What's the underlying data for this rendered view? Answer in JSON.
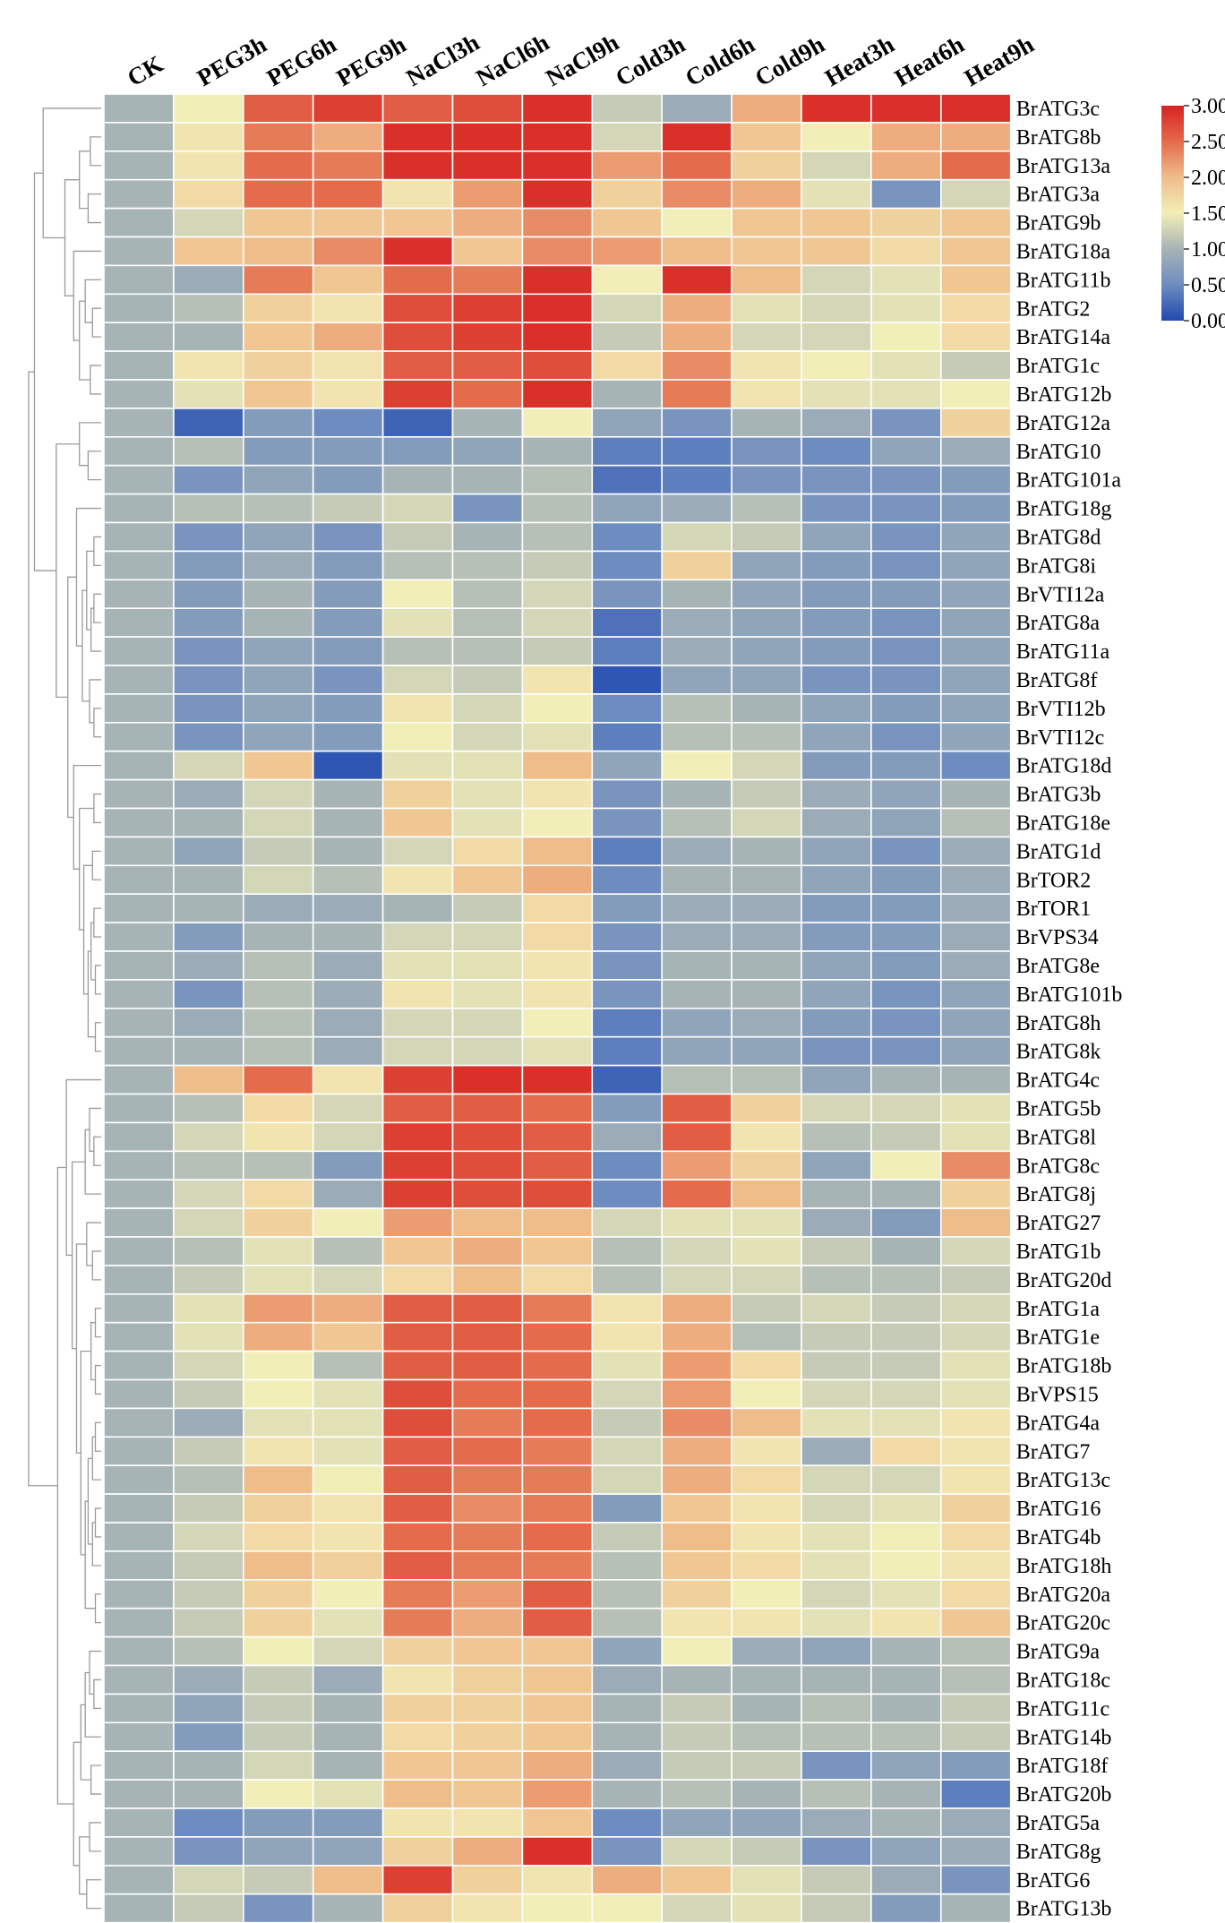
{
  "chart_data": {
    "type": "heatmap",
    "title": "",
    "columns": [
      "CK",
      "PEG3h",
      "PEG6h",
      "PEG9h",
      "NaCl3h",
      "NaCl6h",
      "NaCl9h",
      "Cold3h",
      "Cold6h",
      "Cold9h",
      "Heat3h",
      "Heat6h",
      "Heat9h"
    ],
    "rows": [
      "BrATG3c",
      "BrATG8b",
      "BrATG13a",
      "BrATG3a",
      "BrATG9b",
      "BrATG18a",
      "BrATG11b",
      "BrATG2",
      "BrATG14a",
      "BrATG1c",
      "BrATG12b",
      "BrATG12a",
      "BrATG10",
      "BrATG101a",
      "BrATG18g",
      "BrATG8d",
      "BrATG8i",
      "BrVTI12a",
      "BrATG8a",
      "BrATG11a",
      "BrATG8f",
      "BrVTI12b",
      "BrVTI12c",
      "BrATG18d",
      "BrATG3b",
      "BrATG18e",
      "BrATG1d",
      "BrTOR2",
      "BrTOR1",
      "BrVPS34",
      "BrATG8e",
      "BrATG101b",
      "BrATG8h",
      "BrATG8k",
      "BrATG4c",
      "BrATG5b",
      "BrATG8l",
      "BrATG8c",
      "BrATG8j",
      "BrATG27",
      "BrATG1b",
      "BrATG20d",
      "BrATG1a",
      "BrATG1e",
      "BrATG18b",
      "BrVPS15",
      "BrATG4a",
      "BrATG7",
      "BrATG13c",
      "BrATG16",
      "BrATG4b",
      "BrATG18h",
      "BrATG20a",
      "BrATG20c",
      "BrATG9a",
      "BrATG18c",
      "BrATG11c",
      "BrATG14b",
      "BrATG18f",
      "BrATG20b",
      "BrATG5a",
      "BrATG8g",
      "BrATG6",
      "BrATG13b"
    ],
    "values": [
      [
        1.0,
        1.5,
        2.6,
        2.8,
        2.6,
        2.7,
        2.9,
        1.2,
        0.9,
        2.1,
        2.9,
        2.9,
        2.9
      ],
      [
        1.0,
        1.6,
        2.4,
        2.1,
        2.9,
        2.9,
        2.9,
        1.3,
        2.9,
        1.9,
        1.5,
        2.1,
        2.1
      ],
      [
        1.0,
        1.6,
        2.5,
        2.4,
        2.9,
        2.9,
        2.9,
        2.2,
        2.5,
        1.8,
        1.3,
        2.1,
        2.5
      ],
      [
        1.0,
        1.7,
        2.5,
        2.5,
        1.6,
        2.2,
        2.9,
        1.8,
        2.3,
        2.1,
        1.4,
        0.6,
        1.3
      ],
      [
        1.0,
        1.3,
        1.9,
        1.9,
        1.9,
        2.1,
        2.3,
        1.9,
        1.5,
        1.9,
        1.9,
        1.8,
        1.9
      ],
      [
        1.0,
        1.9,
        2.0,
        2.3,
        2.9,
        1.9,
        2.3,
        2.2,
        2.0,
        1.9,
        1.9,
        1.7,
        1.9
      ],
      [
        1.0,
        0.9,
        2.4,
        1.9,
        2.5,
        2.4,
        2.9,
        1.5,
        2.9,
        2.0,
        1.3,
        1.4,
        1.9
      ],
      [
        1.0,
        1.1,
        1.8,
        1.6,
        2.7,
        2.8,
        2.9,
        1.3,
        2.1,
        1.4,
        1.3,
        1.4,
        1.7
      ],
      [
        1.0,
        1.0,
        1.9,
        2.1,
        2.7,
        2.8,
        2.9,
        1.2,
        2.1,
        1.3,
        1.3,
        1.5,
        1.7
      ],
      [
        1.0,
        1.6,
        1.8,
        1.6,
        2.6,
        2.6,
        2.7,
        1.7,
        2.3,
        1.6,
        1.5,
        1.4,
        1.2
      ],
      [
        1.0,
        1.4,
        1.9,
        1.6,
        2.8,
        2.5,
        2.9,
        1.0,
        2.4,
        1.6,
        1.4,
        1.4,
        1.5
      ],
      [
        1.0,
        0.2,
        0.7,
        0.5,
        0.2,
        1.0,
        1.5,
        0.8,
        0.6,
        1.0,
        0.9,
        0.6,
        1.8
      ],
      [
        1.0,
        1.1,
        0.7,
        0.7,
        0.7,
        0.8,
        1.0,
        0.4,
        0.4,
        0.6,
        0.5,
        0.8,
        0.9
      ],
      [
        1.0,
        0.6,
        0.8,
        0.7,
        1.0,
        1.0,
        1.1,
        0.3,
        0.4,
        0.6,
        0.6,
        0.6,
        0.7
      ],
      [
        1.0,
        1.1,
        1.1,
        1.2,
        1.3,
        0.6,
        1.1,
        0.8,
        0.9,
        1.1,
        0.6,
        0.6,
        0.7
      ],
      [
        1.0,
        0.6,
        0.8,
        0.6,
        1.2,
        1.0,
        1.1,
        0.5,
        1.3,
        1.2,
        0.8,
        0.6,
        0.8
      ],
      [
        1.0,
        0.7,
        0.9,
        0.7,
        1.1,
        1.1,
        1.2,
        0.5,
        1.8,
        0.8,
        0.7,
        0.6,
        0.8
      ],
      [
        1.0,
        0.7,
        1.0,
        0.7,
        1.5,
        1.1,
        1.3,
        0.6,
        1.0,
        0.8,
        0.7,
        0.7,
        0.8
      ],
      [
        1.0,
        0.7,
        1.0,
        0.7,
        1.4,
        1.1,
        1.3,
        0.3,
        0.9,
        0.8,
        0.7,
        0.6,
        0.8
      ],
      [
        1.0,
        0.6,
        0.8,
        0.7,
        1.1,
        1.1,
        1.2,
        0.4,
        0.9,
        0.8,
        0.7,
        0.6,
        0.8
      ],
      [
        1.0,
        0.6,
        0.8,
        0.6,
        1.3,
        1.2,
        1.6,
        0.1,
        0.8,
        0.8,
        0.6,
        0.6,
        0.8
      ],
      [
        1.0,
        0.6,
        0.8,
        0.7,
        1.6,
        1.3,
        1.5,
        0.5,
        1.1,
        1.0,
        0.8,
        0.7,
        0.8
      ],
      [
        1.0,
        0.6,
        0.8,
        0.7,
        1.5,
        1.3,
        1.4,
        0.4,
        1.1,
        1.1,
        0.8,
        0.6,
        0.8
      ],
      [
        1.0,
        1.3,
        1.9,
        0.1,
        1.4,
        1.4,
        2.0,
        0.8,
        1.5,
        1.3,
        0.7,
        0.7,
        0.5
      ],
      [
        1.0,
        0.9,
        1.3,
        1.0,
        1.8,
        1.4,
        1.6,
        0.6,
        1.0,
        1.2,
        0.9,
        0.8,
        1.0
      ],
      [
        1.0,
        1.0,
        1.3,
        1.0,
        1.9,
        1.4,
        1.5,
        0.6,
        1.1,
        1.3,
        0.9,
        0.8,
        1.1
      ],
      [
        1.0,
        0.8,
        1.2,
        1.0,
        1.3,
        1.7,
        2.0,
        0.4,
        0.9,
        1.0,
        0.8,
        0.6,
        0.9
      ],
      [
        1.0,
        1.0,
        1.3,
        1.1,
        1.6,
        1.9,
        2.1,
        0.5,
        1.0,
        1.0,
        0.8,
        0.7,
        0.9
      ],
      [
        1.0,
        1.0,
        0.9,
        0.9,
        1.0,
        1.2,
        1.7,
        0.7,
        0.9,
        0.9,
        0.7,
        0.7,
        0.9
      ],
      [
        1.0,
        0.7,
        1.0,
        1.0,
        1.3,
        1.3,
        1.7,
        0.6,
        0.9,
        0.9,
        0.7,
        0.7,
        0.9
      ],
      [
        1.0,
        0.9,
        1.1,
        0.9,
        1.4,
        1.4,
        1.6,
        0.6,
        1.0,
        1.0,
        0.8,
        0.7,
        0.9
      ],
      [
        1.0,
        0.6,
        1.1,
        0.9,
        1.6,
        1.4,
        1.6,
        0.6,
        1.0,
        1.0,
        0.8,
        0.6,
        0.8
      ],
      [
        1.0,
        0.9,
        1.1,
        0.9,
        1.3,
        1.3,
        1.5,
        0.4,
        0.8,
        0.9,
        0.7,
        0.6,
        0.8
      ],
      [
        1.0,
        1.0,
        1.1,
        0.9,
        1.3,
        1.3,
        1.4,
        0.4,
        0.8,
        0.8,
        0.6,
        0.6,
        0.8
      ],
      [
        1.0,
        2.0,
        2.5,
        1.6,
        2.8,
        2.9,
        2.9,
        0.2,
        1.1,
        1.1,
        0.8,
        1.0,
        1.0
      ],
      [
        1.0,
        1.1,
        1.7,
        1.3,
        2.6,
        2.6,
        2.5,
        0.7,
        2.6,
        1.8,
        1.3,
        1.3,
        1.4
      ],
      [
        1.0,
        1.3,
        1.6,
        1.3,
        2.8,
        2.7,
        2.6,
        0.9,
        2.6,
        1.6,
        1.1,
        1.2,
        1.4
      ],
      [
        1.0,
        1.1,
        1.1,
        0.7,
        2.8,
        2.7,
        2.6,
        0.5,
        2.2,
        1.8,
        0.8,
        1.5,
        2.3
      ],
      [
        1.0,
        1.3,
        1.7,
        0.9,
        2.8,
        2.7,
        2.7,
        0.5,
        2.5,
        2.0,
        1.0,
        1.0,
        1.8
      ],
      [
        1.0,
        1.3,
        1.8,
        1.5,
        2.2,
        2.0,
        2.0,
        1.3,
        1.4,
        1.4,
        0.9,
        0.7,
        2.0
      ],
      [
        1.0,
        1.1,
        1.4,
        1.1,
        1.9,
        2.1,
        1.9,
        1.1,
        1.3,
        1.4,
        1.2,
        1.0,
        1.3
      ],
      [
        1.0,
        1.2,
        1.4,
        1.3,
        1.7,
        2.0,
        1.7,
        1.1,
        1.3,
        1.3,
        1.1,
        1.1,
        1.2
      ],
      [
        1.0,
        1.4,
        2.2,
        2.1,
        2.6,
        2.6,
        2.4,
        1.6,
        2.1,
        1.2,
        1.3,
        1.2,
        1.3
      ],
      [
        1.0,
        1.4,
        2.1,
        1.9,
        2.6,
        2.6,
        2.5,
        1.6,
        2.1,
        1.1,
        1.2,
        1.2,
        1.3
      ],
      [
        1.0,
        1.3,
        1.5,
        1.1,
        2.6,
        2.6,
        2.5,
        1.4,
        2.2,
        1.7,
        1.2,
        1.2,
        1.4
      ],
      [
        1.0,
        1.2,
        1.5,
        1.4,
        2.7,
        2.5,
        2.5,
        1.3,
        2.2,
        1.5,
        1.3,
        1.3,
        1.4
      ],
      [
        1.0,
        0.9,
        1.4,
        1.4,
        2.7,
        2.4,
        2.5,
        1.2,
        2.3,
        2.0,
        1.4,
        1.4,
        1.6
      ],
      [
        1.0,
        1.2,
        1.6,
        1.4,
        2.6,
        2.5,
        2.4,
        1.3,
        2.1,
        1.6,
        0.9,
        1.7,
        1.6
      ],
      [
        1.0,
        1.1,
        2.0,
        1.5,
        2.6,
        2.4,
        2.4,
        1.3,
        2.1,
        1.7,
        1.3,
        1.3,
        1.6
      ],
      [
        1.0,
        1.2,
        1.8,
        1.6,
        2.6,
        2.3,
        2.4,
        0.7,
        1.9,
        1.6,
        1.3,
        1.4,
        1.8
      ],
      [
        1.0,
        1.3,
        1.7,
        1.6,
        2.5,
        2.4,
        2.5,
        1.2,
        2.0,
        1.6,
        1.4,
        1.5,
        1.7
      ],
      [
        1.0,
        1.2,
        2.0,
        1.8,
        2.6,
        2.4,
        2.4,
        1.1,
        1.9,
        1.7,
        1.4,
        1.5,
        1.6
      ],
      [
        1.0,
        1.2,
        1.8,
        1.5,
        2.4,
        2.2,
        2.6,
        1.1,
        1.8,
        1.5,
        1.3,
        1.4,
        1.7
      ],
      [
        1.0,
        1.2,
        1.8,
        1.4,
        2.4,
        2.1,
        2.6,
        1.1,
        1.6,
        1.6,
        1.4,
        1.6,
        1.9
      ],
      [
        1.0,
        1.1,
        1.5,
        1.3,
        1.8,
        1.9,
        1.9,
        0.8,
        1.5,
        0.9,
        0.8,
        1.0,
        1.1
      ],
      [
        1.0,
        0.9,
        1.2,
        0.9,
        1.6,
        1.8,
        1.9,
        0.9,
        1.0,
        1.0,
        1.0,
        1.0,
        1.1
      ],
      [
        1.0,
        0.8,
        1.2,
        1.0,
        1.8,
        1.8,
        1.9,
        1.0,
        1.2,
        1.0,
        1.1,
        1.0,
        1.2
      ],
      [
        1.0,
        0.7,
        1.2,
        1.0,
        1.7,
        1.8,
        1.9,
        1.0,
        1.2,
        1.1,
        1.1,
        1.1,
        1.2
      ],
      [
        1.0,
        1.0,
        1.3,
        1.0,
        1.9,
        1.9,
        2.1,
        0.9,
        1.2,
        1.2,
        0.6,
        0.8,
        0.7
      ],
      [
        1.0,
        1.0,
        1.5,
        1.4,
        2.0,
        1.9,
        2.2,
        1.0,
        1.1,
        1.0,
        1.1,
        1.0,
        0.4
      ],
      [
        1.0,
        0.5,
        0.7,
        0.7,
        1.6,
        1.6,
        1.9,
        0.5,
        0.8,
        0.8,
        0.9,
        1.0,
        0.9
      ],
      [
        1.0,
        0.6,
        0.8,
        0.8,
        1.8,
        2.1,
        2.9,
        0.6,
        1.3,
        1.2,
        0.6,
        0.8,
        0.9
      ],
      [
        1.0,
        1.3,
        1.2,
        2.0,
        2.8,
        1.8,
        1.6,
        2.1,
        1.9,
        1.4,
        1.2,
        0.9,
        0.6
      ],
      [
        1.0,
        1.2,
        0.6,
        1.0,
        1.8,
        1.6,
        1.5,
        1.5,
        1.3,
        1.4,
        1.2,
        0.7,
        1.0
      ]
    ],
    "colorbar": {
      "min": 0.0,
      "max": 3.0,
      "ticks": [
        "3.00",
        "2.50",
        "2.00",
        "1.50",
        "1.00",
        "0.50",
        "0.00"
      ],
      "colors": [
        "#2149b0",
        "#6d8cc0",
        "#a7b4b6",
        "#f2eeb7",
        "#efbd8a",
        "#e46b4c",
        "#d62322"
      ]
    },
    "dendrogram": "row clustering tree on left, no labels",
    "legend_position": "top-right"
  }
}
